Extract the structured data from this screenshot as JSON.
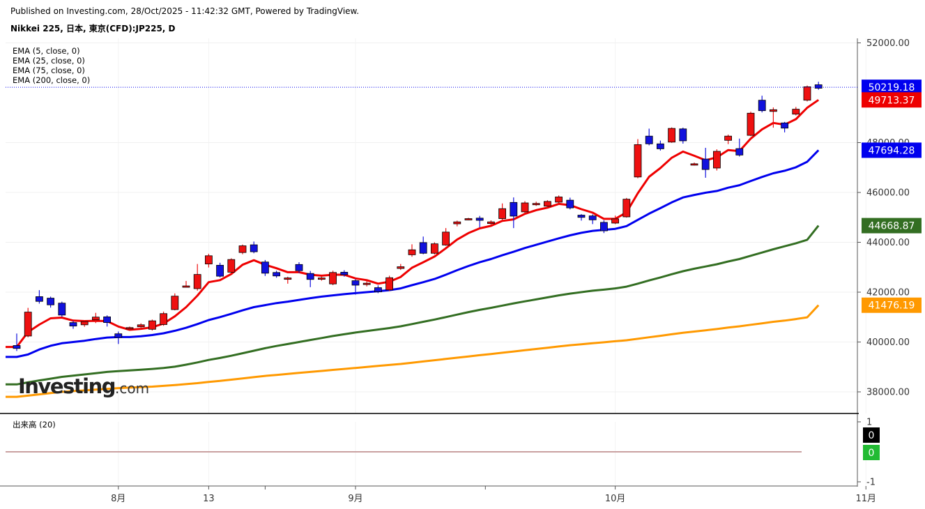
{
  "header": {
    "publisher": "Published on Investing.com, 28/Oct/2025 - 11:42:32 GMT, Powered by TradingView.",
    "symbol": "Nikkei 225, 日本, 東京(CFD):JP225, D"
  },
  "logo": {
    "brand": "Investing",
    "dotcom": ".com"
  },
  "volume_panel": {
    "legend": "出来高 (20)",
    "axis_ticks": [
      "1",
      "-1"
    ],
    "labels": [
      {
        "text": "0",
        "color": "#000000"
      },
      {
        "text": "0",
        "color": "#22bb33"
      }
    ]
  },
  "colors": {
    "up_candle": "#ee1111",
    "down_candle": "#1111dd",
    "ema5": "#ee0000",
    "ema25": "#0000ee",
    "ema75": "#336e22",
    "ema200": "#ff9900",
    "price_line": "#0000ee"
  },
  "chart_data": {
    "type": "candlestick",
    "title": "Nikkei 225, 日本, 東京(CFD):JP225, D",
    "ylim": [
      37000,
      52500
    ],
    "y_ticks": [
      38000,
      40000,
      42000,
      44000,
      46000,
      48000,
      52000
    ],
    "y_tick_labels": [
      "38000.00",
      "40000.00",
      "42000.00",
      "44000.00",
      "46000.00",
      "48000.00",
      "52000.00"
    ],
    "x_tick_labels": [
      "8月",
      "13",
      "9月",
      "10月",
      "11月"
    ],
    "x_tick_candle_index": [
      9,
      17,
      30,
      53,
      75.2
    ],
    "candles": [
      {
        "o": 39860,
        "c": 39740,
        "h": 40340,
        "l": 39640
      },
      {
        "o": 40240,
        "c": 41200,
        "h": 41370,
        "l": 40190
      },
      {
        "o": 41820,
        "c": 41630,
        "h": 42080,
        "l": 41540
      },
      {
        "o": 41760,
        "c": 41490,
        "h": 41820,
        "l": 41380
      },
      {
        "o": 41560,
        "c": 41080,
        "h": 41620,
        "l": 41010
      },
      {
        "o": 40780,
        "c": 40640,
        "h": 40850,
        "l": 40530
      },
      {
        "o": 40690,
        "c": 40820,
        "h": 40870,
        "l": 40610
      },
      {
        "o": 40890,
        "c": 41000,
        "h": 41170,
        "l": 40760
      },
      {
        "o": 41010,
        "c": 40780,
        "h": 41070,
        "l": 40620
      },
      {
        "o": 40330,
        "c": 40180,
        "h": 40420,
        "l": 39920
      },
      {
        "o": 40530,
        "c": 40580,
        "h": 40620,
        "l": 40470
      },
      {
        "o": 40610,
        "c": 40690,
        "h": 40750,
        "l": 40550
      },
      {
        "o": 40510,
        "c": 40850,
        "h": 40900,
        "l": 40460
      },
      {
        "o": 40700,
        "c": 41140,
        "h": 41220,
        "l": 40650
      },
      {
        "o": 41300,
        "c": 41840,
        "h": 41950,
        "l": 41270
      },
      {
        "o": 42210,
        "c": 42250,
        "h": 42450,
        "l": 42200
      },
      {
        "o": 42140,
        "c": 42710,
        "h": 43130,
        "l": 42060
      },
      {
        "o": 43130,
        "c": 43460,
        "h": 43540,
        "l": 42990
      },
      {
        "o": 43080,
        "c": 42640,
        "h": 43180,
        "l": 42590
      },
      {
        "o": 42800,
        "c": 43310,
        "h": 43360,
        "l": 42750
      },
      {
        "o": 43590,
        "c": 43860,
        "h": 43910,
        "l": 43520
      },
      {
        "o": 43900,
        "c": 43620,
        "h": 44030,
        "l": 43560
      },
      {
        "o": 43210,
        "c": 42760,
        "h": 43290,
        "l": 42650
      },
      {
        "o": 42790,
        "c": 42650,
        "h": 42860,
        "l": 42580
      },
      {
        "o": 42540,
        "c": 42570,
        "h": 42620,
        "l": 42340
      },
      {
        "o": 43110,
        "c": 42860,
        "h": 43200,
        "l": 42770
      },
      {
        "o": 42750,
        "c": 42510,
        "h": 42850,
        "l": 42200
      },
      {
        "o": 42530,
        "c": 42570,
        "h": 42630,
        "l": 42460
      },
      {
        "o": 42330,
        "c": 42790,
        "h": 42860,
        "l": 42280
      },
      {
        "o": 42800,
        "c": 42700,
        "h": 42880,
        "l": 42620
      },
      {
        "o": 42460,
        "c": 42280,
        "h": 42520,
        "l": 41900
      },
      {
        "o": 42350,
        "c": 42360,
        "h": 42450,
        "l": 42230
      },
      {
        "o": 42180,
        "c": 42010,
        "h": 42270,
        "l": 41960
      },
      {
        "o": 42090,
        "c": 42580,
        "h": 42660,
        "l": 42040
      },
      {
        "o": 42950,
        "c": 43020,
        "h": 43130,
        "l": 42890
      },
      {
        "o": 43500,
        "c": 43700,
        "h": 43920,
        "l": 43420
      },
      {
        "o": 43990,
        "c": 43560,
        "h": 44230,
        "l": 43520
      },
      {
        "o": 43560,
        "c": 43940,
        "h": 44000,
        "l": 43510
      },
      {
        "o": 43890,
        "c": 44410,
        "h": 44570,
        "l": 43860
      },
      {
        "o": 44740,
        "c": 44820,
        "h": 44870,
        "l": 44640
      },
      {
        "o": 44900,
        "c": 44950,
        "h": 44980,
        "l": 44880
      },
      {
        "o": 44970,
        "c": 44880,
        "h": 45060,
        "l": 44600
      },
      {
        "o": 44750,
        "c": 44820,
        "h": 44880,
        "l": 44680
      },
      {
        "o": 44950,
        "c": 45350,
        "h": 45560,
        "l": 44870
      },
      {
        "o": 45600,
        "c": 45050,
        "h": 45800,
        "l": 44570
      },
      {
        "o": 45220,
        "c": 45580,
        "h": 45650,
        "l": 45180
      },
      {
        "o": 45530,
        "c": 45560,
        "h": 45630,
        "l": 45460
      },
      {
        "o": 45450,
        "c": 45640,
        "h": 45690,
        "l": 45400
      },
      {
        "o": 45610,
        "c": 45820,
        "h": 45880,
        "l": 45570
      },
      {
        "o": 45690,
        "c": 45380,
        "h": 45790,
        "l": 45320
      },
      {
        "o": 45090,
        "c": 45000,
        "h": 45130,
        "l": 44870
      },
      {
        "o": 45060,
        "c": 44900,
        "h": 45120,
        "l": 44730
      },
      {
        "o": 44800,
        "c": 44460,
        "h": 44880,
        "l": 44370
      },
      {
        "o": 44770,
        "c": 44940,
        "h": 45070,
        "l": 44730
      },
      {
        "o": 45020,
        "c": 45730,
        "h": 45780,
        "l": 44990
      },
      {
        "o": 46620,
        "c": 47920,
        "h": 48140,
        "l": 46570
      },
      {
        "o": 48260,
        "c": 47950,
        "h": 48560,
        "l": 47890
      },
      {
        "o": 47950,
        "c": 47750,
        "h": 48080,
        "l": 47680
      },
      {
        "o": 48020,
        "c": 48570,
        "h": 48610,
        "l": 47990
      },
      {
        "o": 48550,
        "c": 48070,
        "h": 48600,
        "l": 47960
      },
      {
        "o": 47140,
        "c": 47150,
        "h": 47200,
        "l": 47080
      },
      {
        "o": 47340,
        "c": 46920,
        "h": 47790,
        "l": 46590
      },
      {
        "o": 46980,
        "c": 47650,
        "h": 47730,
        "l": 46880
      },
      {
        "o": 48090,
        "c": 48260,
        "h": 48320,
        "l": 47940
      },
      {
        "o": 47760,
        "c": 47500,
        "h": 48160,
        "l": 47440
      },
      {
        "o": 48290,
        "c": 49180,
        "h": 49240,
        "l": 48260
      },
      {
        "o": 49700,
        "c": 49280,
        "h": 49880,
        "l": 49210
      },
      {
        "o": 49250,
        "c": 49320,
        "h": 49410,
        "l": 48600
      },
      {
        "o": 48790,
        "c": 48580,
        "h": 48830,
        "l": 48410
      },
      {
        "o": 49140,
        "c": 49340,
        "h": 49430,
        "l": 49090
      },
      {
        "o": 49700,
        "c": 50240,
        "h": 50290,
        "l": 49650
      },
      {
        "o": 50320,
        "c": 50180,
        "h": 50440,
        "l": 50120
      }
    ],
    "series": [
      {
        "name": "EMA (5, close, 0)",
        "color": "#ee0000",
        "last_label": "49713.37",
        "values": [
          39800,
          40400,
          40700,
          40950,
          40980,
          40860,
          40840,
          40850,
          40840,
          40620,
          40490,
          40530,
          40590,
          40740,
          41030,
          41400,
          41860,
          42400,
          42480,
          42730,
          43100,
          43280,
          43100,
          42960,
          42800,
          42800,
          42700,
          42660,
          42700,
          42700,
          42550,
          42480,
          42340,
          42420,
          42610,
          42980,
          43200,
          43430,
          43760,
          44110,
          44370,
          44560,
          44660,
          44860,
          44920,
          45140,
          45290,
          45390,
          45540,
          45490,
          45330,
          45190,
          44940,
          44940,
          45200,
          45970,
          46630,
          46980,
          47390,
          47640,
          47470,
          47290,
          47410,
          47700,
          47660,
          48160,
          48530,
          48790,
          48720,
          48940,
          49400,
          49713
        ]
      },
      {
        "name": "EMA (25, close, 0)",
        "color": "#0000ee",
        "last_label": "47694.28",
        "values": [
          39400,
          39500,
          39700,
          39850,
          39950,
          40000,
          40050,
          40120,
          40180,
          40200,
          40200,
          40230,
          40280,
          40350,
          40450,
          40570,
          40720,
          40880,
          41000,
          41130,
          41270,
          41400,
          41480,
          41560,
          41620,
          41690,
          41760,
          41820,
          41870,
          41920,
          41960,
          42000,
          42040,
          42080,
          42150,
          42280,
          42400,
          42530,
          42700,
          42880,
          43050,
          43200,
          43330,
          43480,
          43620,
          43770,
          43900,
          44030,
          44160,
          44280,
          44380,
          44460,
          44500,
          44540,
          44650,
          44900,
          45150,
          45370,
          45600,
          45800,
          45900,
          45990,
          46060,
          46190,
          46290,
          46460,
          46620,
          46770,
          46870,
          47010,
          47230,
          47694
        ]
      },
      {
        "name": "EMA (75, close, 0)",
        "color": "#336e22",
        "last_label": "44668.87",
        "values": [
          38300,
          38380,
          38460,
          38530,
          38600,
          38650,
          38700,
          38750,
          38800,
          38830,
          38860,
          38890,
          38920,
          38960,
          39010,
          39090,
          39180,
          39280,
          39360,
          39450,
          39550,
          39650,
          39750,
          39840,
          39920,
          40000,
          40080,
          40160,
          40240,
          40310,
          40380,
          40440,
          40500,
          40560,
          40630,
          40720,
          40810,
          40900,
          41000,
          41100,
          41200,
          41290,
          41370,
          41460,
          41550,
          41630,
          41710,
          41790,
          41870,
          41940,
          42000,
          42060,
          42100,
          42150,
          42220,
          42340,
          42470,
          42590,
          42720,
          42840,
          42940,
          43030,
          43120,
          43230,
          43330,
          43460,
          43590,
          43720,
          43840,
          43960,
          44100,
          44669
        ]
      },
      {
        "name": "EMA (200, close, 0)",
        "color": "#ff9900",
        "last_label": "41476.19",
        "values": [
          37800,
          37850,
          37900,
          37950,
          38000,
          38030,
          38060,
          38090,
          38120,
          38150,
          38170,
          38190,
          38210,
          38240,
          38270,
          38310,
          38350,
          38400,
          38440,
          38490,
          38540,
          38590,
          38640,
          38680,
          38720,
          38760,
          38800,
          38840,
          38880,
          38920,
          38960,
          39000,
          39040,
          39080,
          39120,
          39170,
          39220,
          39270,
          39320,
          39370,
          39420,
          39470,
          39520,
          39570,
          39620,
          39670,
          39720,
          39770,
          39820,
          39870,
          39910,
          39950,
          39990,
          40030,
          40070,
          40130,
          40190,
          40250,
          40310,
          40370,
          40420,
          40470,
          40520,
          40580,
          40630,
          40690,
          40750,
          40810,
          40860,
          40920,
          40990,
          41476
        ]
      }
    ],
    "last_price": 50219.18,
    "last_price_label": "50219.18",
    "volume_ylim": [
      -1,
      1
    ],
    "legend_position": "top-left",
    "grid": true
  }
}
